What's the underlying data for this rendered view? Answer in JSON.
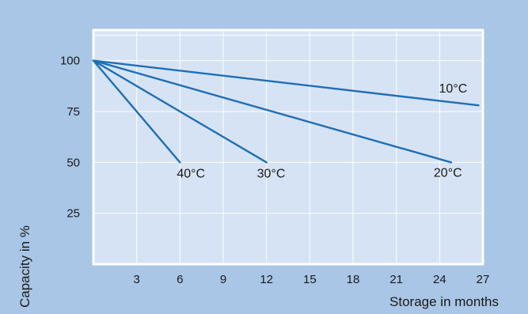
{
  "chart_data": {
    "type": "line",
    "title": "",
    "xlabel": "Storage in months",
    "ylabel": "Capacity in %",
    "xlim": [
      0,
      27
    ],
    "ylim": [
      0,
      115
    ],
    "x_ticks": [
      3,
      6,
      9,
      12,
      15,
      18,
      21,
      24,
      27
    ],
    "y_ticks": [
      25,
      50,
      75,
      100
    ],
    "grid": true,
    "series": [
      {
        "name": "10°C",
        "x": [
          0,
          26.7
        ],
        "values": [
          100,
          78
        ]
      },
      {
        "name": "20°C",
        "x": [
          0,
          24.8
        ],
        "values": [
          100,
          50
        ]
      },
      {
        "name": "30°C",
        "x": [
          0,
          12
        ],
        "values": [
          100,
          50
        ]
      },
      {
        "name": "40°C",
        "x": [
          0,
          6
        ],
        "values": [
          100,
          50
        ]
      }
    ]
  },
  "colors": {
    "frame_background": "#a9c6e6",
    "plot_background": "#d6e3f5",
    "plot_border": "#ffffff",
    "grid": "#ffffff",
    "line": "#1f6fb5"
  }
}
